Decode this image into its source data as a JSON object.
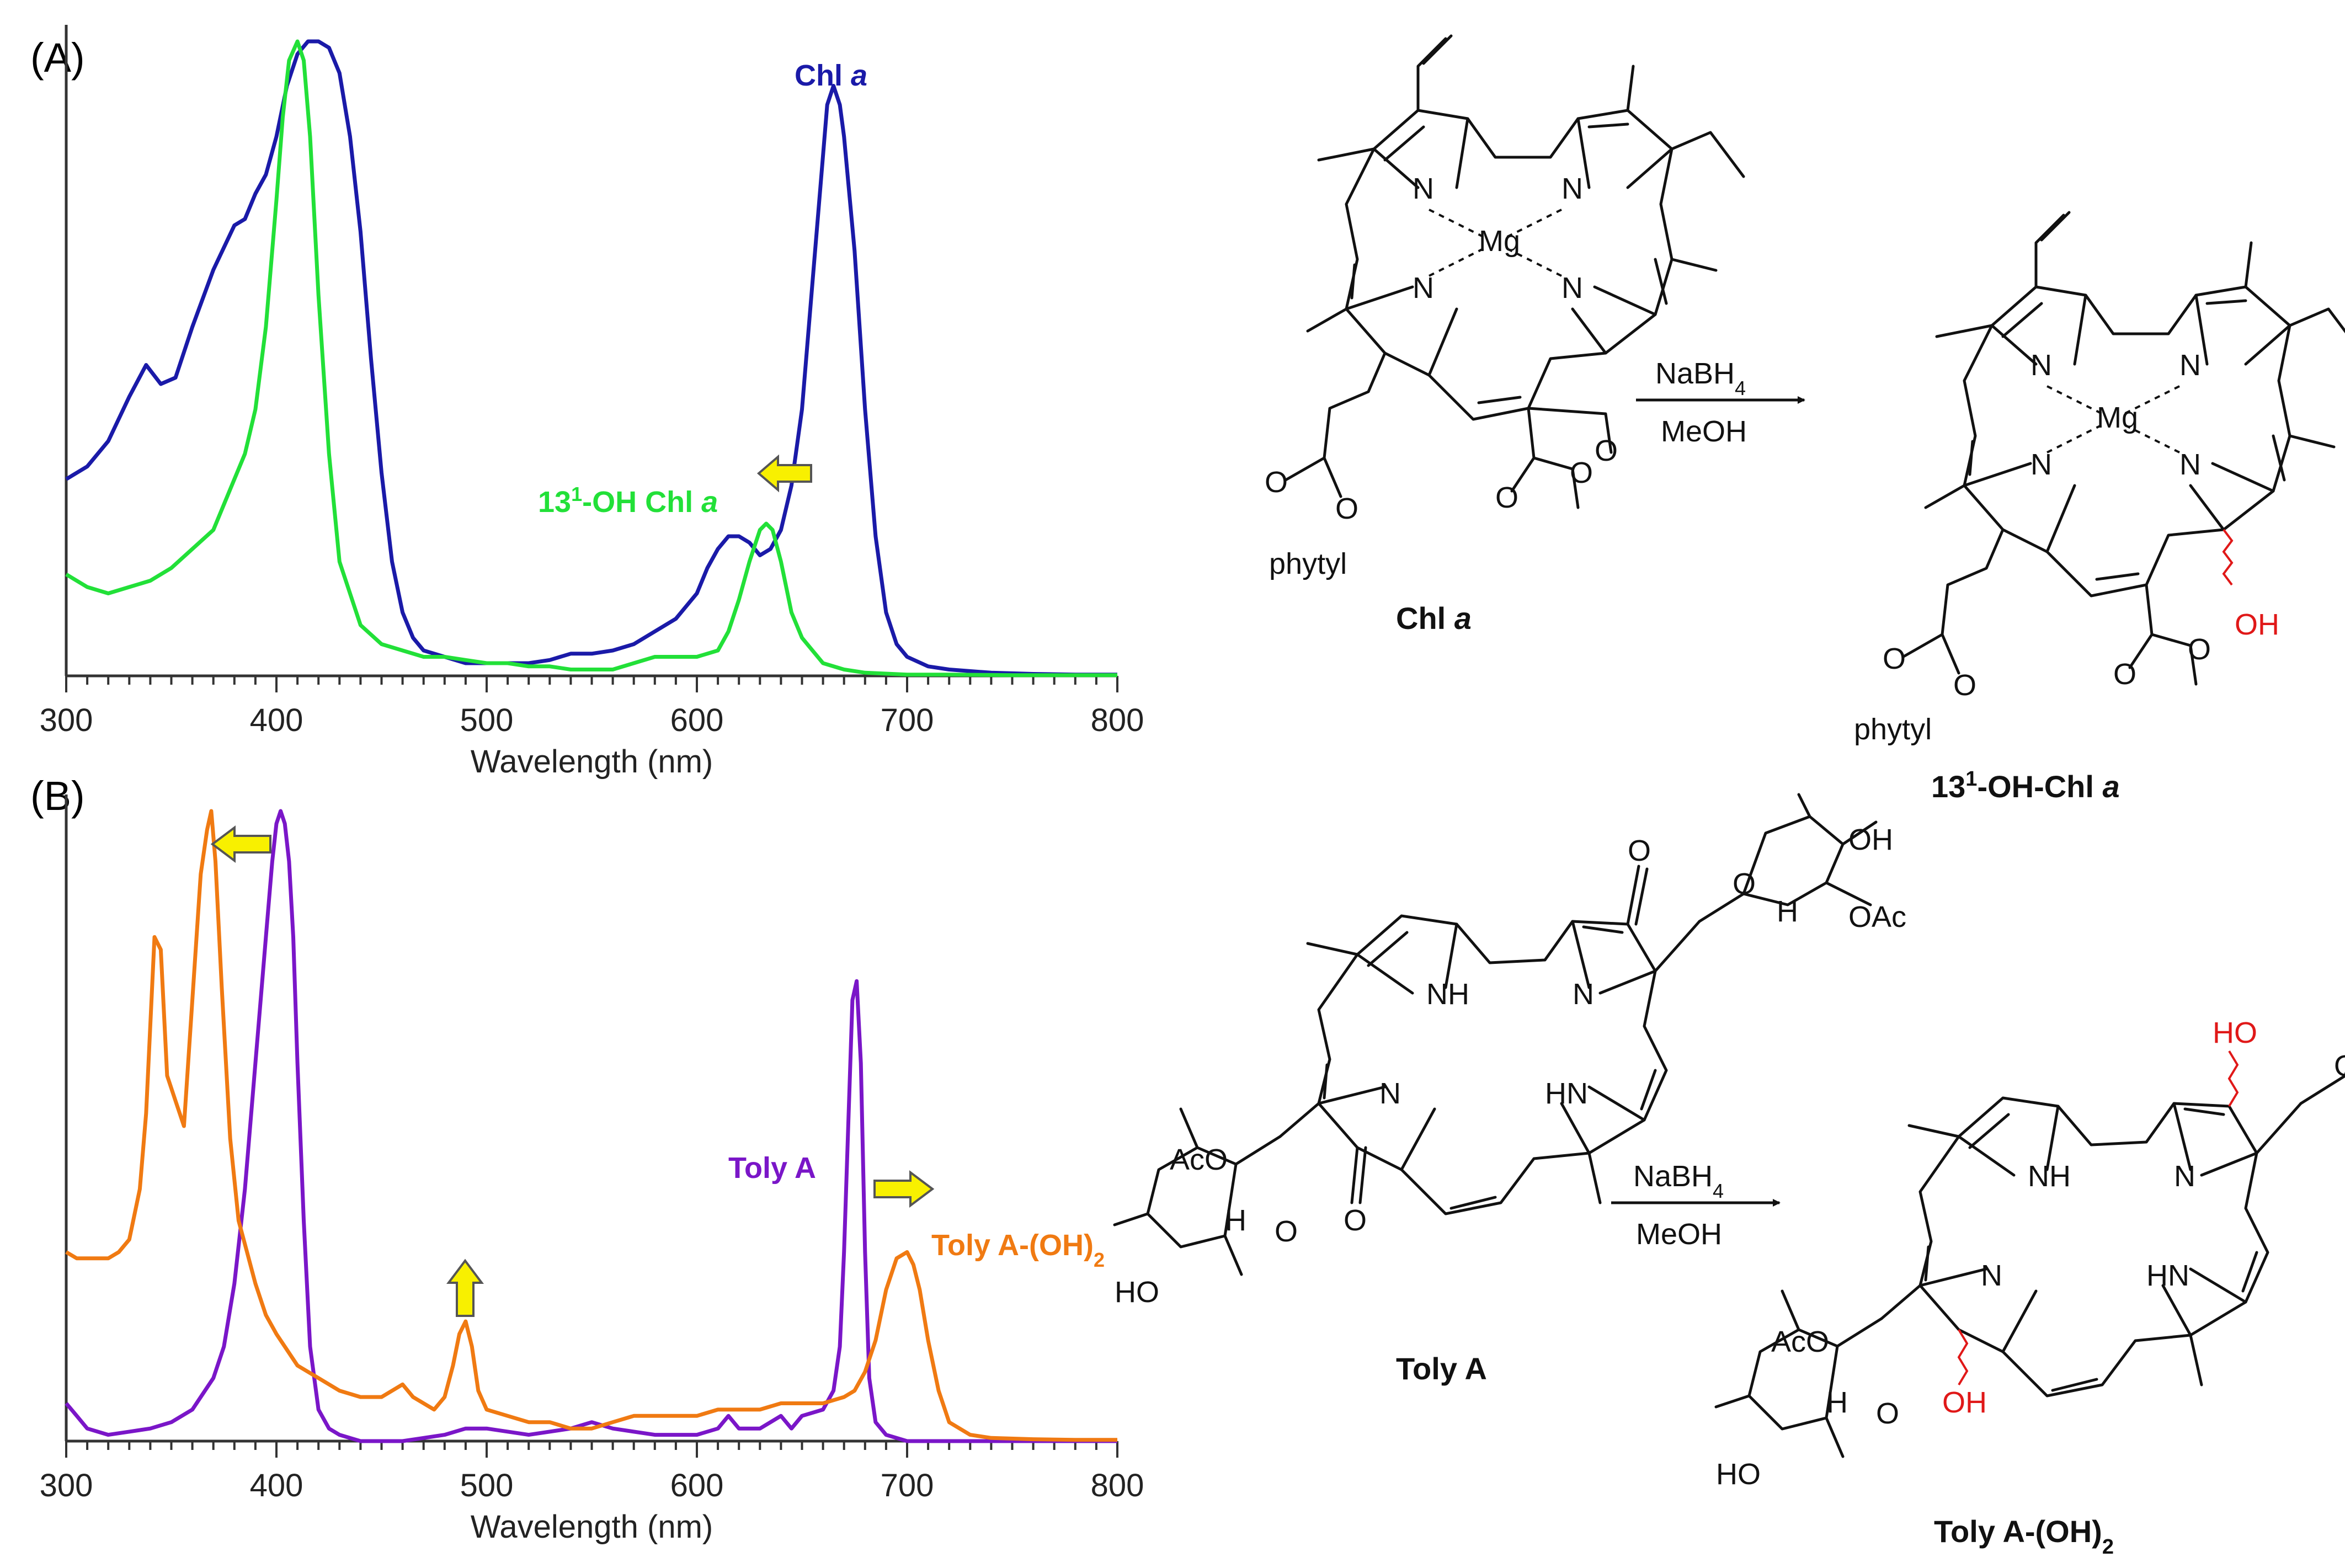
{
  "chart_data": [
    {
      "panel_label": "(A)",
      "type": "line",
      "xlabel": "Wavelength (nm)",
      "xlim": [
        300,
        800
      ],
      "xticks": [
        300,
        400,
        500,
        600,
        700,
        800
      ],
      "series": [
        {
          "name": "Chl a",
          "name_main": "Chl ",
          "name_italic": "a",
          "color": "#1a1aa8",
          "x": [
            300,
            310,
            320,
            330,
            338,
            345,
            352,
            360,
            370,
            380,
            385,
            390,
            395,
            400,
            405,
            410,
            415,
            420,
            425,
            430,
            435,
            440,
            445,
            450,
            455,
            460,
            465,
            470,
            480,
            490,
            500,
            510,
            520,
            530,
            540,
            550,
            560,
            570,
            580,
            590,
            600,
            605,
            610,
            615,
            620,
            625,
            630,
            635,
            640,
            645,
            650,
            655,
            660,
            662,
            665,
            668,
            670,
            675,
            680,
            685,
            690,
            695,
            700,
            710,
            720,
            740,
            760,
            780,
            800
          ],
          "y": [
            0.31,
            0.33,
            0.37,
            0.44,
            0.49,
            0.46,
            0.47,
            0.55,
            0.64,
            0.71,
            0.72,
            0.76,
            0.79,
            0.85,
            0.93,
            0.98,
            1.0,
            1.0,
            0.99,
            0.95,
            0.85,
            0.7,
            0.5,
            0.32,
            0.18,
            0.1,
            0.06,
            0.04,
            0.03,
            0.02,
            0.02,
            0.02,
            0.02,
            0.025,
            0.035,
            0.035,
            0.04,
            0.05,
            0.07,
            0.09,
            0.13,
            0.17,
            0.2,
            0.22,
            0.22,
            0.21,
            0.19,
            0.2,
            0.23,
            0.3,
            0.42,
            0.62,
            0.82,
            0.9,
            0.93,
            0.9,
            0.85,
            0.67,
            0.42,
            0.22,
            0.1,
            0.05,
            0.03,
            0.015,
            0.01,
            0.005,
            0.003,
            0.002,
            0.002
          ]
        },
        {
          "name": "13¹-OH Chl a",
          "name_main": "13",
          "name_sup": "1",
          "name_rest": "-OH Chl ",
          "name_italic": "a",
          "color": "#22e038",
          "x": [
            300,
            310,
            320,
            330,
            340,
            350,
            360,
            370,
            380,
            385,
            390,
            395,
            400,
            403,
            406,
            410,
            413,
            416,
            420,
            425,
            430,
            440,
            450,
            460,
            470,
            480,
            490,
            500,
            510,
            520,
            530,
            540,
            560,
            570,
            580,
            590,
            600,
            610,
            615,
            620,
            625,
            630,
            633,
            636,
            640,
            645,
            650,
            655,
            660,
            670,
            680,
            700,
            720,
            750,
            800
          ],
          "y": [
            0.16,
            0.14,
            0.13,
            0.14,
            0.15,
            0.17,
            0.2,
            0.23,
            0.31,
            0.35,
            0.42,
            0.55,
            0.75,
            0.88,
            0.97,
            1.0,
            0.97,
            0.85,
            0.6,
            0.35,
            0.18,
            0.08,
            0.05,
            0.04,
            0.03,
            0.03,
            0.025,
            0.02,
            0.02,
            0.015,
            0.015,
            0.01,
            0.01,
            0.02,
            0.03,
            0.03,
            0.03,
            0.04,
            0.07,
            0.12,
            0.18,
            0.23,
            0.24,
            0.23,
            0.18,
            0.1,
            0.06,
            0.04,
            0.02,
            0.01,
            0.005,
            0.002,
            0.002,
            0.001,
            0.001
          ]
        }
      ]
    },
    {
      "panel_label": "(B)",
      "type": "line",
      "xlabel": "Wavelength (nm)",
      "xlim": [
        300,
        800
      ],
      "xticks": [
        300,
        400,
        500,
        600,
        700,
        800
      ],
      "series": [
        {
          "name": "Toly A",
          "color": "#7a16c8",
          "x": [
            300,
            305,
            310,
            320,
            330,
            340,
            350,
            360,
            370,
            375,
            380,
            385,
            390,
            395,
            398,
            400,
            402,
            404,
            406,
            408,
            410,
            413,
            416,
            420,
            425,
            430,
            440,
            460,
            480,
            490,
            500,
            520,
            540,
            550,
            560,
            580,
            600,
            610,
            615,
            620,
            630,
            640,
            645,
            650,
            660,
            665,
            668,
            670,
            672,
            674,
            676,
            678,
            680,
            682,
            685,
            690,
            700,
            720,
            750,
            800
          ],
          "y": [
            0.06,
            0.04,
            0.02,
            0.01,
            0.015,
            0.02,
            0.03,
            0.05,
            0.1,
            0.15,
            0.25,
            0.4,
            0.6,
            0.8,
            0.92,
            0.98,
            1.0,
            0.98,
            0.92,
            0.8,
            0.6,
            0.35,
            0.15,
            0.05,
            0.02,
            0.01,
            0.0,
            0.0,
            0.01,
            0.02,
            0.02,
            0.01,
            0.02,
            0.03,
            0.02,
            0.01,
            0.01,
            0.02,
            0.04,
            0.02,
            0.02,
            0.04,
            0.02,
            0.04,
            0.05,
            0.08,
            0.15,
            0.3,
            0.5,
            0.7,
            0.73,
            0.6,
            0.3,
            0.1,
            0.03,
            0.01,
            0.0,
            0.0,
            0.0,
            0.0
          ],
          "annotation": "red shift"
        },
        {
          "name": "Toly A-(OH)₂",
          "name_main": "Toly A-(OH)",
          "name_sub": "2",
          "color": "#f07a12",
          "x": [
            300,
            305,
            310,
            315,
            320,
            325,
            330,
            335,
            338,
            342,
            345,
            348,
            352,
            356,
            360,
            364,
            367,
            369,
            371,
            374,
            378,
            382,
            386,
            390,
            395,
            400,
            410,
            420,
            430,
            440,
            450,
            460,
            465,
            470,
            475,
            480,
            484,
            487,
            490,
            493,
            496,
            500,
            510,
            520,
            530,
            540,
            550,
            560,
            570,
            580,
            590,
            600,
            610,
            620,
            630,
            640,
            650,
            660,
            670,
            675,
            680,
            685,
            690,
            695,
            700,
            703,
            706,
            710,
            715,
            720,
            730,
            740,
            760,
            780,
            800
          ],
          "y": [
            0.3,
            0.29,
            0.29,
            0.29,
            0.29,
            0.3,
            0.32,
            0.4,
            0.52,
            0.8,
            0.78,
            0.58,
            0.54,
            0.5,
            0.7,
            0.9,
            0.97,
            1.0,
            0.92,
            0.72,
            0.48,
            0.35,
            0.3,
            0.25,
            0.2,
            0.17,
            0.12,
            0.1,
            0.08,
            0.07,
            0.07,
            0.09,
            0.07,
            0.06,
            0.05,
            0.07,
            0.12,
            0.17,
            0.19,
            0.15,
            0.08,
            0.05,
            0.04,
            0.03,
            0.03,
            0.02,
            0.02,
            0.03,
            0.04,
            0.04,
            0.04,
            0.04,
            0.05,
            0.05,
            0.05,
            0.06,
            0.06,
            0.06,
            0.07,
            0.08,
            0.11,
            0.16,
            0.24,
            0.29,
            0.3,
            0.28,
            0.24,
            0.16,
            0.08,
            0.03,
            0.01,
            0.005,
            0.003,
            0.002,
            0.002
          ]
        }
      ]
    }
  ],
  "schemes": {
    "a": {
      "reactant_name": "Chl ",
      "reactant_italic": "a",
      "product_name_main": "13",
      "product_name_sup": "1",
      "product_name_rest": "-OH-Chl ",
      "product_name_italic": "a",
      "reagent_top": "NaBH",
      "reagent_top_sub": "4",
      "reagent_bottom": "MeOH",
      "atoms": {
        "N": "N",
        "Mg": "Mg",
        "O": "O",
        "OH": "OH",
        "phytyl": "phytyl"
      }
    },
    "b": {
      "reactant_name": "Toly A",
      "product_name_main": "Toly A-(OH)",
      "product_name_sub": "2",
      "reagent_top": "NaBH",
      "reagent_top_sub": "4",
      "reagent_bottom": "MeOH",
      "atoms": {
        "N": "N",
        "NH": "NH",
        "HN": "HN",
        "O": "O",
        "H": "H",
        "OH": "OH",
        "HO": "HO",
        "OAc": "OAc",
        "AcO": "AcO"
      }
    }
  },
  "colors": {
    "arrow_fill": "#f8f000",
    "arrow_stroke": "#555555",
    "axis": "#333333",
    "highlight": "#e01818"
  }
}
